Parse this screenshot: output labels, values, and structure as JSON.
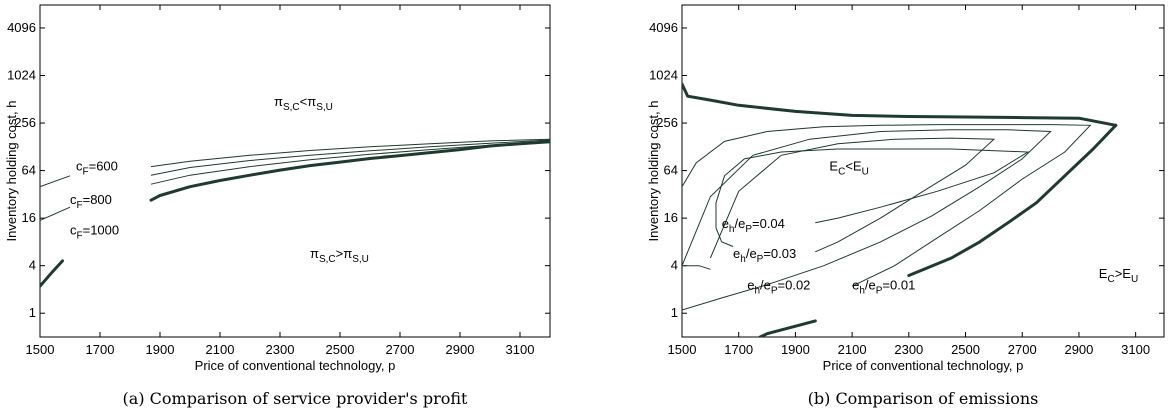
{
  "chart_data": [
    {
      "type": "line",
      "caption": "(a) Comparison of service provider's profit",
      "xlabel": "Price of conventional technology, p",
      "ylabel": "Inventory holding cost, h",
      "xlim": [
        1500,
        3200
      ],
      "ylim": [
        0.5,
        8000
      ],
      "yscale": "log2",
      "xticks": [
        1500,
        1700,
        1900,
        2100,
        2300,
        2500,
        2700,
        2900,
        3100
      ],
      "yticks": [
        1,
        4,
        16,
        64,
        256,
        1024,
        4096
      ],
      "grid": false,
      "series": [
        {
          "name": "",
          "style": "thick",
          "x": [
            1500,
            1540,
            1575
          ],
          "y": [
            2.2,
            3.3,
            4.6
          ]
        },
        {
          "name": "",
          "style": "thick",
          "x": [
            1870,
            1900,
            2000,
            2100,
            2200,
            2300,
            2400,
            2500,
            2600,
            2700,
            2800,
            2900,
            3000,
            3100,
            3200
          ],
          "y": [
            27,
            31,
            40,
            48,
            56,
            65,
            74,
            82,
            91,
            99,
            108,
            118,
            131,
            140,
            148
          ]
        },
        {
          "name": "c_F=600",
          "style": "thin",
          "x": [
            1870,
            2000,
            2200,
            2400,
            2600,
            2800,
            3000,
            3200
          ],
          "y": [
            72,
            84,
            100,
            115,
            128,
            140,
            152,
            160
          ]
        },
        {
          "name": "c_F=800",
          "style": "thin",
          "x": [
            1500,
            1600
          ],
          "y": [
            40,
            55
          ]
        },
        {
          "name": "c_F=800",
          "style": "thin",
          "x": [
            1870,
            2000,
            2200,
            2400,
            2600,
            2800,
            3000,
            3200
          ],
          "y": [
            56,
            70,
            86,
            100,
            114,
            128,
            142,
            156
          ]
        },
        {
          "name": "c_F=1000",
          "style": "thin",
          "x": [
            1500,
            1600
          ],
          "y": [
            15,
            22
          ]
        },
        {
          "name": "c_F=1000",
          "style": "thin",
          "x": [
            1870,
            2000,
            2200,
            2400,
            2600,
            2800,
            3000,
            3200
          ],
          "y": [
            43,
            56,
            72,
            88,
            103,
            118,
            134,
            152
          ]
        }
      ],
      "annotations": [
        {
          "base": "π",
          "sub": "S,C",
          "mid": "<π",
          "sub2": "S,U",
          "x": 2280,
          "y": 420
        },
        {
          "base": "c",
          "sub": "F",
          "mid": "=600",
          "x": 1620,
          "y": 64
        },
        {
          "base": "c",
          "sub": "F",
          "mid": "=800",
          "x": 1600,
          "y": 24
        },
        {
          "base": "c",
          "sub": "F",
          "mid": "=1000",
          "x": 1600,
          "y": 10
        },
        {
          "base": "π",
          "sub": "S,C",
          "mid": ">π",
          "sub2": "S,U",
          "x": 2400,
          "y": 5
        }
      ]
    },
    {
      "type": "line",
      "caption": "(b) Comparison of emissions",
      "xlabel": "Price of conventional technology, p",
      "ylabel": "Inventory holding cost, h",
      "xlim": [
        1500,
        3200
      ],
      "ylim": [
        0.5,
        8000
      ],
      "yscale": "log2",
      "xticks": [
        1500,
        1700,
        1900,
        2100,
        2300,
        2500,
        2700,
        2900,
        3100
      ],
      "yticks": [
        1,
        4,
        16,
        64,
        256,
        1024,
        4096
      ],
      "grid": false,
      "series": [
        {
          "name": "",
          "style": "thick",
          "x": [
            1500,
            1520,
            1600,
            1700,
            1900,
            2100,
            2300,
            2500,
            2700,
            2900,
            3030
          ],
          "y": [
            800,
            560,
            500,
            430,
            360,
            320,
            310,
            305,
            300,
            295,
            240
          ]
        },
        {
          "name": "",
          "style": "thick",
          "x": [
            3030,
            2950,
            2850,
            2750,
            2650,
            2550,
            2450,
            2300
          ],
          "y": [
            240,
            120,
            55,
            25,
            14,
            8,
            5,
            3
          ]
        },
        {
          "name": "",
          "style": "thick",
          "x": [
            1720,
            1800,
            1970
          ],
          "y": [
            0.4,
            0.55,
            0.8
          ]
        },
        {
          "name": "e_h/e_P=0.01",
          "style": "thin",
          "x": [
            1500,
            1550,
            1650,
            1800,
            2000,
            2200,
            2400,
            2600,
            2800,
            2940,
            2850,
            2700,
            2550,
            2400,
            2250,
            2100
          ],
          "y": [
            40,
            80,
            150,
            200,
            230,
            240,
            245,
            245,
            245,
            240,
            110,
            50,
            20,
            9,
            4,
            2.2
          ]
        },
        {
          "name": "e_h/e_P=0.02",
          "style": "thin",
          "x": [
            1500,
            1600,
            1750,
            1950,
            2200,
            2450,
            2650,
            2800,
            2700,
            2550,
            2380,
            2200,
            2000,
            1800,
            1650,
            1500
          ],
          "y": [
            4,
            30,
            100,
            160,
            200,
            210,
            210,
            200,
            90,
            40,
            17,
            8,
            4,
            2.3,
            1.6,
            1.1
          ]
        },
        {
          "name": "e_h/e_P=0.03",
          "style": "thin",
          "x": [
            1500,
            1560,
            1600
          ],
          "y": [
            4,
            4,
            3.6
          ]
        },
        {
          "name": "e_h/e_P=0.03",
          "style": "thin",
          "x": [
            1600,
            1700,
            1850,
            2050,
            2250,
            2450,
            2600,
            2500,
            2350,
            2200,
            2050,
            1970
          ],
          "y": [
            5,
            35,
            100,
            140,
            160,
            165,
            160,
            75,
            35,
            16,
            8,
            6
          ]
        },
        {
          "name": "e_h/e_P=0.04",
          "style": "thin",
          "x": [
            1620,
            1620,
            1650,
            1720,
            1850,
            2050,
            2250,
            2450,
            2720,
            2600,
            2400,
            2200,
            2050,
            1970
          ],
          "y": [
            12,
            25,
            55,
            90,
            110,
            120,
            120,
            120,
            110,
            60,
            35,
            22,
            16,
            14
          ]
        },
        {
          "name": "e_h/e_P=0.04",
          "style": "thin",
          "x": [
            1620,
            1640,
            1680
          ],
          "y": [
            12,
            8,
            7
          ]
        }
      ],
      "annotations": [
        {
          "base": "E",
          "sub": "C",
          "mid": "<E",
          "sub2": "U",
          "x": 2020,
          "y": 64
        },
        {
          "base": "e",
          "sub": "h",
          "mid": "/e",
          "sub2": "P",
          "tail": "=0.04",
          "x": 1640,
          "y": 12
        },
        {
          "base": "e",
          "sub": "h",
          "mid": "/e",
          "sub2": "P",
          "tail": "=0.03",
          "x": 1680,
          "y": 5
        },
        {
          "base": "e",
          "sub": "h",
          "mid": "/e",
          "sub2": "P",
          "tail": "=0.02",
          "x": 1730,
          "y": 2
        },
        {
          "base": "e",
          "sub": "h",
          "mid": "/e",
          "sub2": "P",
          "tail": "=0.01",
          "x": 2100,
          "y": 2
        },
        {
          "base": "E",
          "sub": "C",
          "mid": ">E",
          "sub2": "U",
          "x": 2970,
          "y": 2.8
        }
      ]
    }
  ]
}
